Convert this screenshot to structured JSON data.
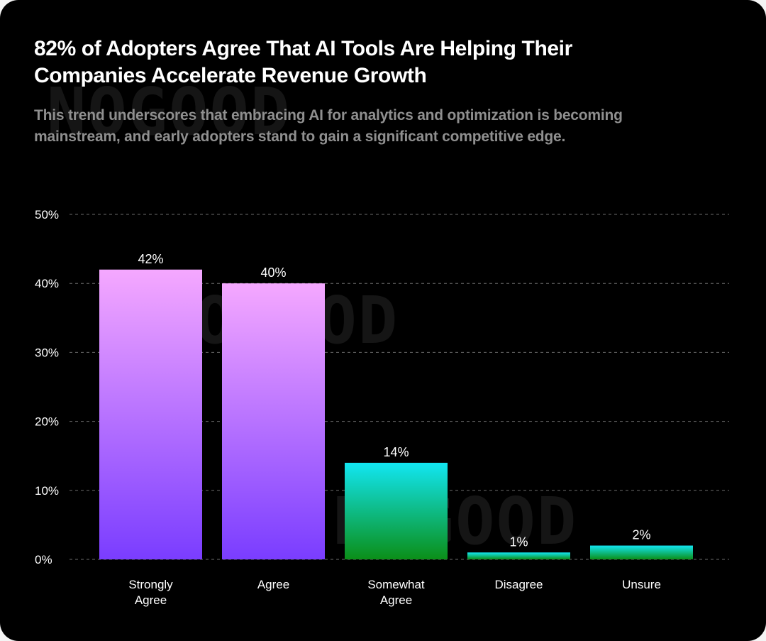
{
  "chart_data": {
    "type": "bar",
    "title": "82% of Adopters Agree That AI Tools Are Helping Their Companies Accelerate Revenue Growth",
    "subtitle": "This trend underscores that embracing AI for analytics and optimization is becoming mainstream, and early adopters stand to gain a significant competitive edge.",
    "categories": [
      [
        "Strongly",
        "Agree"
      ],
      [
        "Agree"
      ],
      [
        "Somewhat",
        "Agree"
      ],
      [
        "Disagree"
      ],
      [
        "Unsure"
      ]
    ],
    "values": [
      42,
      40,
      14,
      1,
      2
    ],
    "value_labels": [
      "42%",
      "40%",
      "14%",
      "1%",
      "2%"
    ],
    "y_ticks": [
      0,
      10,
      20,
      30,
      40,
      50
    ],
    "y_tick_labels": [
      "0%",
      "10%",
      "20%",
      "30%",
      "40%",
      "50%"
    ],
    "ylim": [
      0,
      50
    ],
    "grid": true,
    "xlabel": "",
    "ylabel": "",
    "bar_gradients": [
      {
        "top": "#f5a8ff",
        "bottom": "#7a3dff"
      },
      {
        "top": "#f5a8ff",
        "bottom": "#7a3dff"
      },
      {
        "top": "#12e6f2",
        "bottom": "#0b8f18"
      },
      {
        "top": "#12e6f2",
        "bottom": "#0b8f18"
      },
      {
        "top": "#12e6f2",
        "bottom": "#0b8f18"
      }
    ],
    "colors": {
      "background": "#000000",
      "title": "#ffffff",
      "subtitle": "#8f8f8f",
      "axis_text": "#ffffff",
      "grid": "#6b6b6b",
      "watermark": "#151515"
    }
  },
  "watermark": {
    "text": "NOGOOD"
  }
}
